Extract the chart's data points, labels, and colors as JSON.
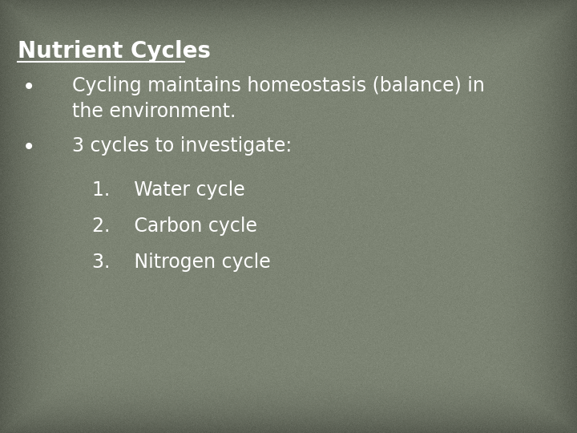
{
  "title": "Nutrient Cycles",
  "background_color": "#7d8474",
  "vignette_color": "#3a3d35",
  "text_color": "#ffffff",
  "bullet1_line1": "Cycling maintains homeostasis (balance) in",
  "bullet1_line2": "the environment.",
  "bullet2": "3 cycles to investigate:",
  "numbered_items": [
    "1.    Water cycle",
    "2.    Carbon cycle",
    "3.    Nitrogen cycle"
  ],
  "title_fontsize": 20,
  "body_fontsize": 17,
  "figsize": [
    7.2,
    5.4
  ],
  "dpi": 100
}
